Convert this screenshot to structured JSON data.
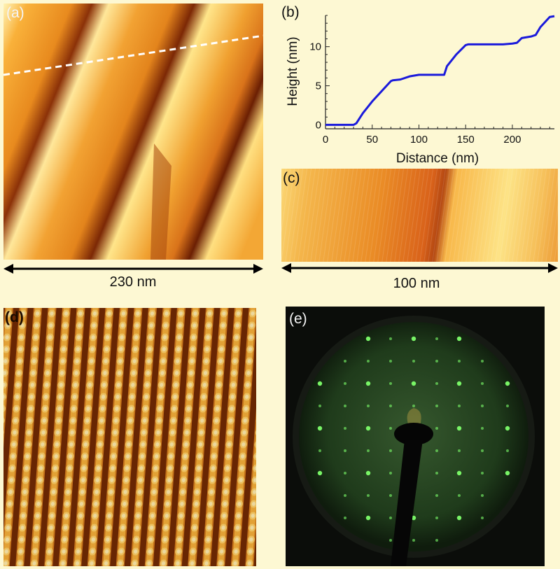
{
  "panels": {
    "a": {
      "label": "(a)",
      "scale_label": "230 nm"
    },
    "b": {
      "label": "(b)"
    },
    "c": {
      "label": "(c)",
      "scale_label": "100 nm"
    },
    "d": {
      "label": "(d)"
    },
    "e": {
      "label": "(e)"
    }
  },
  "chart_data": {
    "type": "line",
    "title": "",
    "xlabel": "Distance (nm)",
    "ylabel": "Height (nm)",
    "xlim": [
      0,
      245
    ],
    "ylim": [
      -0.5,
      14
    ],
    "xticks": [
      0,
      50,
      100,
      150,
      200
    ],
    "yticks": [
      0,
      5,
      10
    ],
    "grid": false,
    "series": [
      {
        "color": "#1a1adb",
        "x": [
          0,
          10,
          20,
          30,
          33,
          40,
          50,
          60,
          70,
          72,
          80,
          90,
          100,
          110,
          120,
          127,
          130,
          140,
          150,
          153,
          160,
          170,
          180,
          190,
          200,
          205,
          210,
          220,
          225,
          230,
          240,
          245
        ],
        "y": [
          0,
          0,
          0,
          0,
          0.2,
          1.5,
          3.0,
          4.3,
          5.6,
          5.7,
          5.8,
          6.2,
          6.4,
          6.4,
          6.4,
          6.4,
          7.5,
          9.0,
          10.2,
          10.3,
          10.3,
          10.3,
          10.3,
          10.3,
          10.4,
          10.5,
          11.1,
          11.3,
          11.5,
          12.5,
          13.8,
          13.9
        ]
      }
    ]
  },
  "colors": {
    "background": "#fdf8d3",
    "series_line": "#1a1adb",
    "stm_dark": "#5a1600",
    "stm_bright": "#fff0a0",
    "leed_spot": "#7dff6a"
  }
}
